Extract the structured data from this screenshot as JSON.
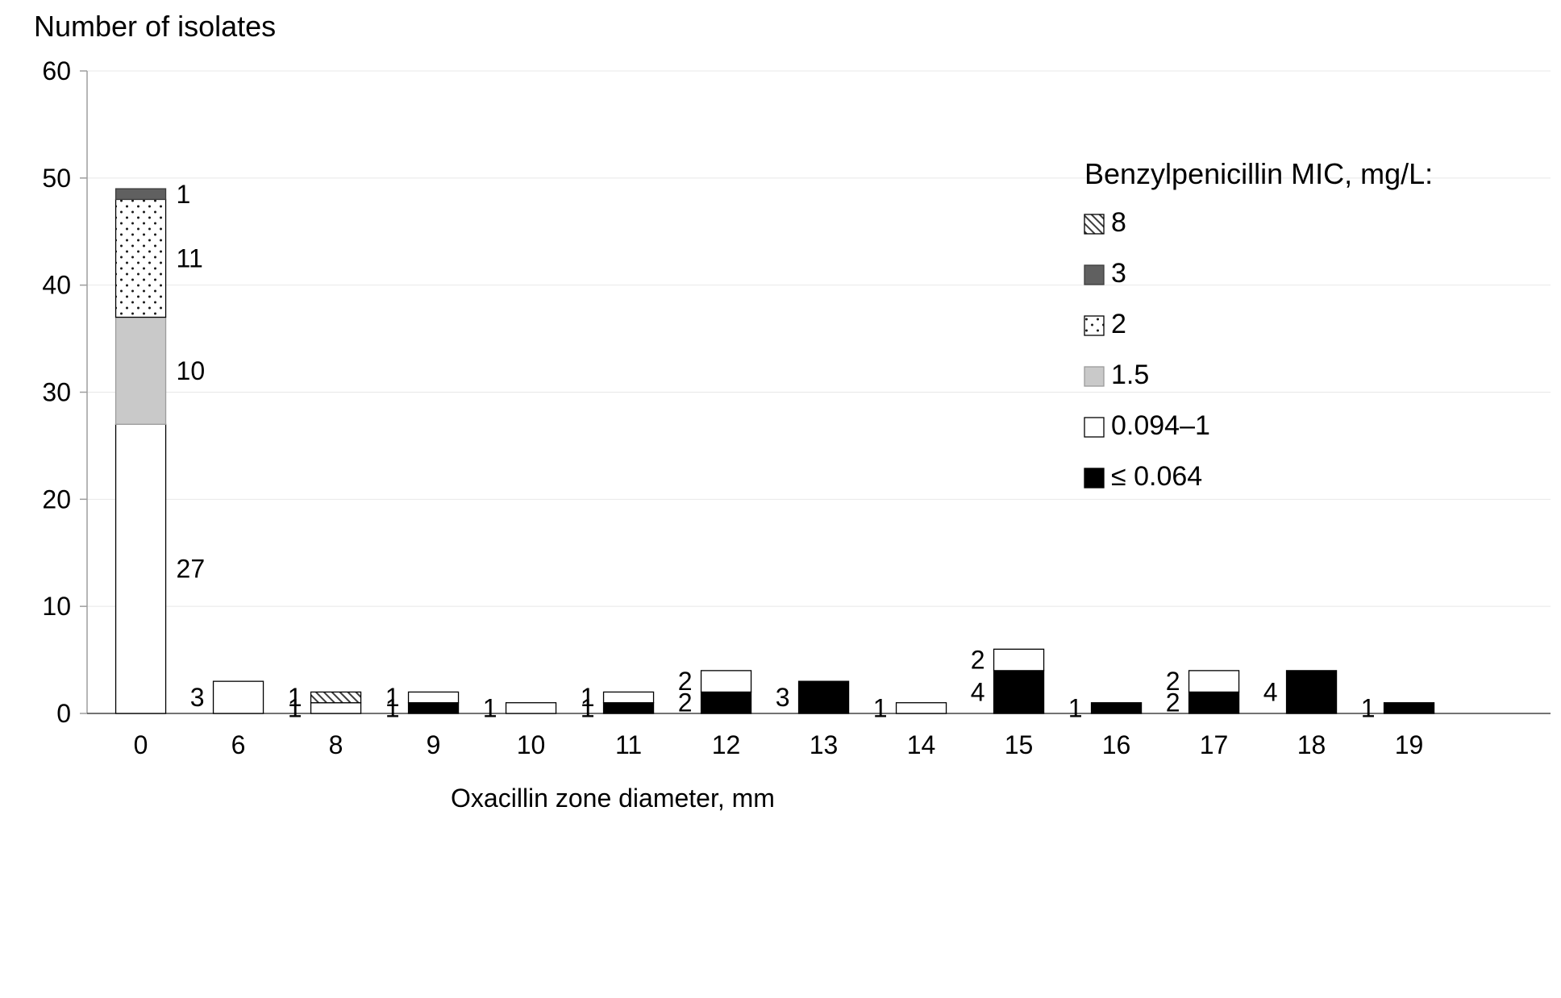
{
  "page": {
    "background": "#ffffff"
  },
  "chart_data": {
    "type": "bar",
    "stacked": true,
    "title": "Number of isolates",
    "xlabel": "Oxacillin zone diameter, mm",
    "ylim": [
      0,
      60
    ],
    "yticks": [
      0,
      10,
      20,
      30,
      40,
      50,
      60
    ],
    "grid": true,
    "categories": [
      "0",
      "6",
      "8",
      "9",
      "10",
      "11",
      "12",
      "13",
      "14",
      "15",
      "16",
      "17",
      "18",
      "19"
    ],
    "legend_title": "Benzylpenicillin MIC, mg/L:",
    "legend_position": "right",
    "legend_order_top_to_bottom": [
      "8",
      "3",
      "2",
      "1.5",
      "0.094–1",
      "≤ 0.064"
    ],
    "series": [
      {
        "name": "≤ 0.064",
        "pattern": "solid",
        "color": "#000000",
        "border": "#000000",
        "values": [
          0,
          0,
          0,
          1,
          0,
          1,
          2,
          3,
          0,
          4,
          1,
          2,
          4,
          1
        ]
      },
      {
        "name": "0.094–1",
        "pattern": "solid",
        "color": "#ffffff",
        "border": "#000000",
        "values": [
          27,
          3,
          1,
          1,
          1,
          1,
          2,
          0,
          1,
          2,
          0,
          2,
          0,
          0
        ]
      },
      {
        "name": "1.5",
        "pattern": "solid",
        "color": "#c9c9c9",
        "border": "#9b9b9b",
        "values": [
          10,
          0,
          0,
          0,
          0,
          0,
          0,
          0,
          0,
          0,
          0,
          0,
          0,
          0
        ]
      },
      {
        "name": "2",
        "pattern": "dots",
        "color": "#ffffff",
        "border": "#000000",
        "values": [
          11,
          0,
          0,
          0,
          0,
          0,
          0,
          0,
          0,
          0,
          0,
          0,
          0,
          0
        ]
      },
      {
        "name": "3",
        "pattern": "solid",
        "color": "#606060",
        "border": "#3c3c3c",
        "values": [
          1,
          0,
          0,
          0,
          0,
          0,
          0,
          0,
          0,
          0,
          0,
          0,
          0,
          0
        ]
      },
      {
        "name": "8",
        "pattern": "hatch",
        "color": "#ffffff",
        "border": "#000000",
        "values": [
          0,
          0,
          1,
          0,
          0,
          0,
          0,
          0,
          0,
          0,
          0,
          0,
          0,
          0
        ]
      }
    ]
  }
}
